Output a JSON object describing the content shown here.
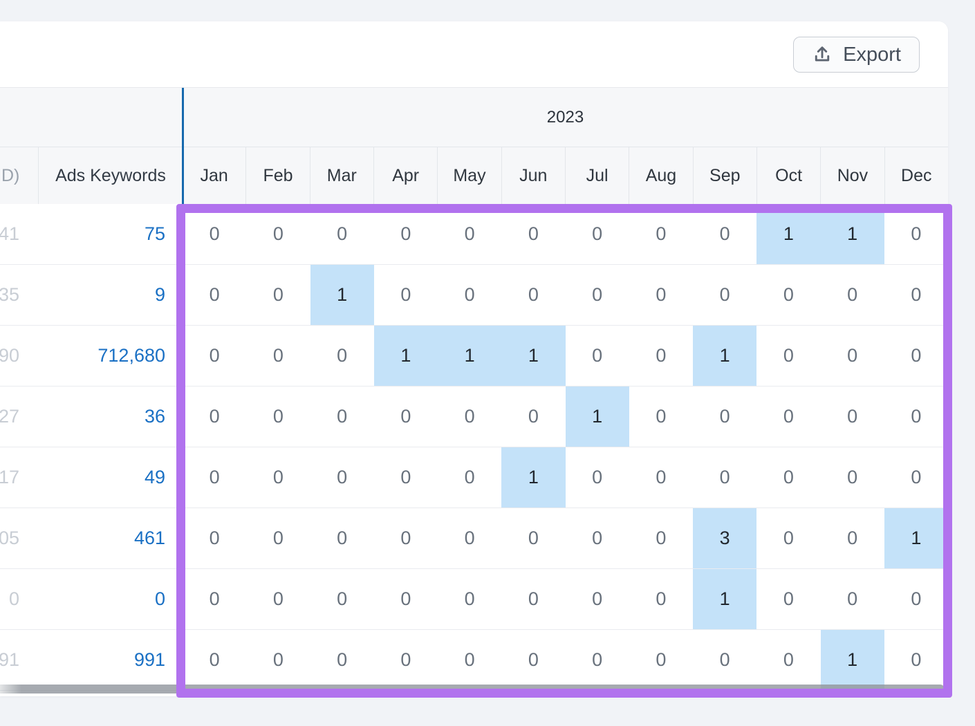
{
  "toolbar": {
    "export_label": "Export"
  },
  "table": {
    "year_header": "2023",
    "fixed_columns": {
      "truncated_header": "D)",
      "ads_keywords_header": "Ads Keywords"
    },
    "months": [
      "Jan",
      "Feb",
      "Mar",
      "Apr",
      "May",
      "Jun",
      "Jul",
      "Aug",
      "Sep",
      "Oct",
      "Nov",
      "Dec"
    ],
    "rows": [
      {
        "row_id_partial": "41",
        "ads_keywords": "75",
        "monthly_values": [
          0,
          0,
          0,
          0,
          0,
          0,
          0,
          0,
          0,
          1,
          1,
          0
        ]
      },
      {
        "row_id_partial": "35",
        "ads_keywords": "9",
        "monthly_values": [
          0,
          0,
          1,
          0,
          0,
          0,
          0,
          0,
          0,
          0,
          0,
          0
        ]
      },
      {
        "row_id_partial": "90",
        "ads_keywords": "712,680",
        "monthly_values": [
          0,
          0,
          0,
          1,
          1,
          1,
          0,
          0,
          1,
          0,
          0,
          0
        ]
      },
      {
        "row_id_partial": "27",
        "ads_keywords": "36",
        "monthly_values": [
          0,
          0,
          0,
          0,
          0,
          0,
          1,
          0,
          0,
          0,
          0,
          0
        ]
      },
      {
        "row_id_partial": "17",
        "ads_keywords": "49",
        "monthly_values": [
          0,
          0,
          0,
          0,
          0,
          1,
          0,
          0,
          0,
          0,
          0,
          0
        ]
      },
      {
        "row_id_partial": "05",
        "ads_keywords": "461",
        "monthly_values": [
          0,
          0,
          0,
          0,
          0,
          0,
          0,
          0,
          3,
          0,
          0,
          1
        ]
      },
      {
        "row_id_partial": "0",
        "ads_keywords": "0",
        "monthly_values": [
          0,
          0,
          0,
          0,
          0,
          0,
          0,
          0,
          1,
          0,
          0,
          0
        ]
      },
      {
        "row_id_partial": "91",
        "ads_keywords": "991",
        "monthly_values": [
          0,
          0,
          0,
          0,
          0,
          0,
          0,
          0,
          0,
          0,
          1,
          0
        ]
      }
    ],
    "colors": {
      "highlight_cell": "#c4e2f9",
      "link_blue": "#1a70c4",
      "annotation_purple": "#b172ee",
      "year_divider_blue": "#1769ad"
    }
  }
}
